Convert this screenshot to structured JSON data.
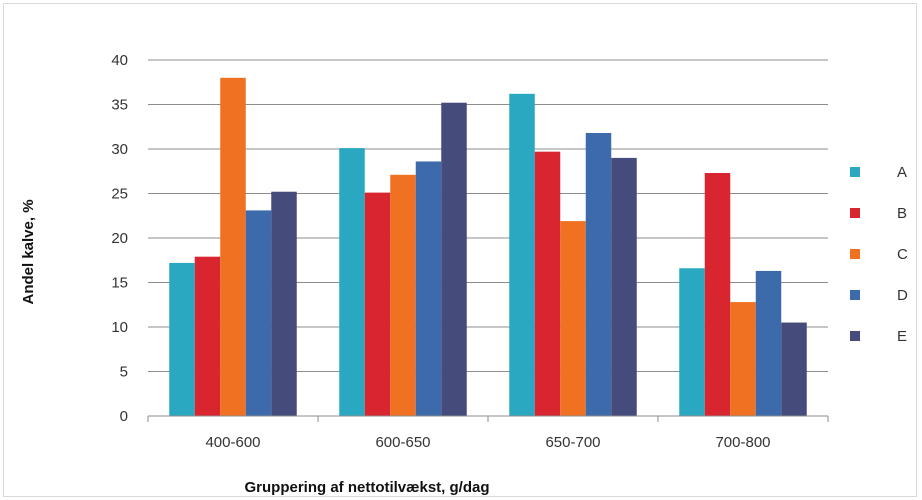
{
  "chart_data": {
    "type": "bar",
    "title": "",
    "xlabel": "Gruppering af nettotilvækst, g/dag",
    "ylabel": "Andel kalve, %",
    "ylim": [
      0,
      40
    ],
    "yticks": [
      "0",
      "5",
      "10",
      "15",
      "20",
      "25",
      "30",
      "35",
      "40"
    ],
    "grid": true,
    "legend_position": "right",
    "categories": [
      "400-600",
      "600-650",
      "650-700",
      "700-800"
    ],
    "series": [
      {
        "name": "A",
        "color": "#2aa8c1",
        "values": [
          17.2,
          30.1,
          36.2,
          16.6
        ]
      },
      {
        "name": "B",
        "color": "#d92530",
        "values": [
          17.9,
          25.1,
          29.7,
          27.3
        ]
      },
      {
        "name": "C",
        "color": "#ef7121",
        "values": [
          38.0,
          27.1,
          21.9,
          12.8
        ]
      },
      {
        "name": "D",
        "color": "#3d6aab",
        "values": [
          23.1,
          28.6,
          31.8,
          16.3
        ]
      },
      {
        "name": "E",
        "color": "#454b7b",
        "values": [
          25.2,
          35.2,
          29.0,
          10.5
        ]
      }
    ]
  }
}
